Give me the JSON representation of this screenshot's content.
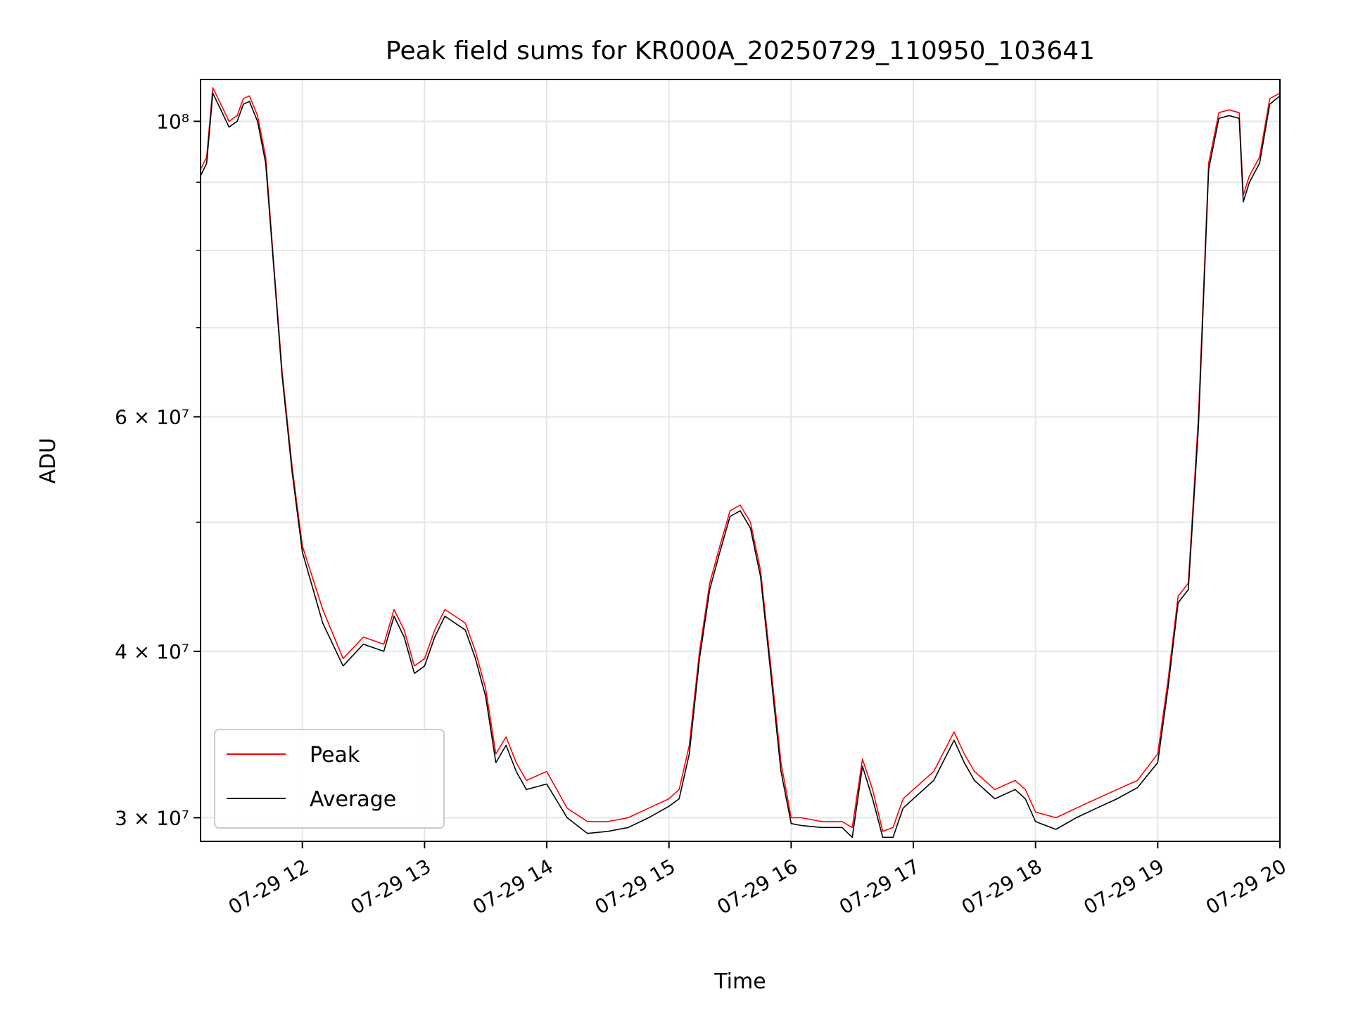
{
  "chart_data": {
    "type": "line",
    "title": "Peak field sums for KR000A_20250729_110950_103641",
    "xlabel": "Time",
    "ylabel": "ADU",
    "y_scale": "log",
    "grid": true,
    "legend_position": "lower-left",
    "xlim": [
      "2025-07-29 11:10",
      "2025-07-29 20:00"
    ],
    "ylim": [
      28800000,
      107500000
    ],
    "x_ticks": [
      {
        "value": "2025-07-29 12:00",
        "label": "07-29 12"
      },
      {
        "value": "2025-07-29 13:00",
        "label": "07-29 13"
      },
      {
        "value": "2025-07-29 14:00",
        "label": "07-29 14"
      },
      {
        "value": "2025-07-29 15:00",
        "label": "07-29 15"
      },
      {
        "value": "2025-07-29 16:00",
        "label": "07-29 16"
      },
      {
        "value": "2025-07-29 17:00",
        "label": "07-29 17"
      },
      {
        "value": "2025-07-29 18:00",
        "label": "07-29 18"
      },
      {
        "value": "2025-07-29 19:00",
        "label": "07-29 19"
      },
      {
        "value": "2025-07-29 20:00",
        "label": "07-29 20"
      }
    ],
    "y_ticks_major": [
      {
        "value": 30000000,
        "label": "3 × 10⁷"
      },
      {
        "value": 40000000,
        "label": "4 × 10⁷"
      },
      {
        "value": 60000000,
        "label": "6 × 10⁷"
      },
      {
        "value": 100000000,
        "label": "10⁸"
      }
    ],
    "y_ticks_minor": [
      50000000,
      70000000,
      80000000,
      90000000
    ],
    "x": [
      "2025-07-29 11:10",
      "2025-07-29 11:13",
      "2025-07-29 11:16",
      "2025-07-29 11:20",
      "2025-07-29 11:24",
      "2025-07-29 11:28",
      "2025-07-29 11:31",
      "2025-07-29 11:34",
      "2025-07-29 11:38",
      "2025-07-29 11:42",
      "2025-07-29 11:46",
      "2025-07-29 11:50",
      "2025-07-29 11:55",
      "2025-07-29 12:00",
      "2025-07-29 12:10",
      "2025-07-29 12:20",
      "2025-07-29 12:30",
      "2025-07-29 12:40",
      "2025-07-29 12:45",
      "2025-07-29 12:50",
      "2025-07-29 12:55",
      "2025-07-29 13:00",
      "2025-07-29 13:05",
      "2025-07-29 13:10",
      "2025-07-29 13:15",
      "2025-07-29 13:20",
      "2025-07-29 13:25",
      "2025-07-29 13:30",
      "2025-07-29 13:35",
      "2025-07-29 13:40",
      "2025-07-29 13:45",
      "2025-07-29 13:50",
      "2025-07-29 14:00",
      "2025-07-29 14:10",
      "2025-07-29 14:20",
      "2025-07-29 14:30",
      "2025-07-29 14:40",
      "2025-07-29 14:50",
      "2025-07-29 15:00",
      "2025-07-29 15:05",
      "2025-07-29 15:10",
      "2025-07-29 15:15",
      "2025-07-29 15:20",
      "2025-07-29 15:25",
      "2025-07-29 15:30",
      "2025-07-29 15:35",
      "2025-07-29 15:40",
      "2025-07-29 15:45",
      "2025-07-29 15:50",
      "2025-07-29 15:55",
      "2025-07-29 16:00",
      "2025-07-29 16:05",
      "2025-07-29 16:15",
      "2025-07-29 16:25",
      "2025-07-29 16:30",
      "2025-07-29 16:35",
      "2025-07-29 16:40",
      "2025-07-29 16:45",
      "2025-07-29 16:50",
      "2025-07-29 16:55",
      "2025-07-29 17:00",
      "2025-07-29 17:10",
      "2025-07-29 17:20",
      "2025-07-29 17:25",
      "2025-07-29 17:30",
      "2025-07-29 17:40",
      "2025-07-29 17:50",
      "2025-07-29 17:55",
      "2025-07-29 18:00",
      "2025-07-29 18:10",
      "2025-07-29 18:20",
      "2025-07-29 18:30",
      "2025-07-29 18:40",
      "2025-07-29 18:50",
      "2025-07-29 19:00",
      "2025-07-29 19:05",
      "2025-07-29 19:10",
      "2025-07-29 19:15",
      "2025-07-29 19:20",
      "2025-07-29 19:25",
      "2025-07-29 19:30",
      "2025-07-29 19:35",
      "2025-07-29 19:40",
      "2025-07-29 19:42",
      "2025-07-29 19:43",
      "2025-07-29 19:45",
      "2025-07-29 19:50",
      "2025-07-29 19:55",
      "2025-07-29 20:00"
    ],
    "series": [
      {
        "name": "Peak",
        "color": "#ff0000",
        "values": [
          92000000,
          94000000,
          106000000,
          103000000,
          100000000,
          101000000,
          104000000,
          104500000,
          101000000,
          94000000,
          78000000,
          65000000,
          55000000,
          48000000,
          43000000,
          39500000,
          41000000,
          40500000,
          43000000,
          41500000,
          39000000,
          39500000,
          41500000,
          43000000,
          42500000,
          42000000,
          40000000,
          37500000,
          33500000,
          34500000,
          33000000,
          32000000,
          32500000,
          30500000,
          29800000,
          29800000,
          30000000,
          30500000,
          31000000,
          31500000,
          34000000,
          40000000,
          45000000,
          48000000,
          51000000,
          51500000,
          50000000,
          46000000,
          39000000,
          33000000,
          30000000,
          30000000,
          29800000,
          29800000,
          29500000,
          33200000,
          31500000,
          29300000,
          29500000,
          31000000,
          31500000,
          32500000,
          34800000,
          33500000,
          32500000,
          31500000,
          32000000,
          31500000,
          30300000,
          30000000,
          30500000,
          31000000,
          31500000,
          32000000,
          33500000,
          38000000,
          44000000,
          45000000,
          60000000,
          93000000,
          101500000,
          102000000,
          101500000,
          88000000,
          89000000,
          91000000,
          94000000,
          104000000,
          105000000
        ]
      },
      {
        "name": "Average",
        "color": "#000000",
        "values": [
          91000000,
          93000000,
          105000000,
          102000000,
          99000000,
          100000000,
          103000000,
          103500000,
          100000000,
          93000000,
          77500000,
          64500000,
          54500000,
          47500000,
          42000000,
          39000000,
          40500000,
          40000000,
          42500000,
          41000000,
          38500000,
          39000000,
          41000000,
          42500000,
          42000000,
          41500000,
          39500000,
          37000000,
          33000000,
          34000000,
          32500000,
          31500000,
          31800000,
          30000000,
          29200000,
          29300000,
          29500000,
          30000000,
          30600000,
          31000000,
          33500000,
          39500000,
          44500000,
          47500000,
          50500000,
          51000000,
          49500000,
          45500000,
          38500000,
          32500000,
          29700000,
          29600000,
          29500000,
          29500000,
          29000000,
          32800000,
          31000000,
          29000000,
          29000000,
          30500000,
          31000000,
          32000000,
          34300000,
          33000000,
          32000000,
          31000000,
          31500000,
          31000000,
          29800000,
          29400000,
          30000000,
          30500000,
          31000000,
          31600000,
          33000000,
          37500000,
          43500000,
          44500000,
          59000000,
          92000000,
          100500000,
          101000000,
          100500000,
          87000000,
          88000000,
          90000000,
          93000000,
          103000000,
          104500000
        ]
      }
    ]
  }
}
